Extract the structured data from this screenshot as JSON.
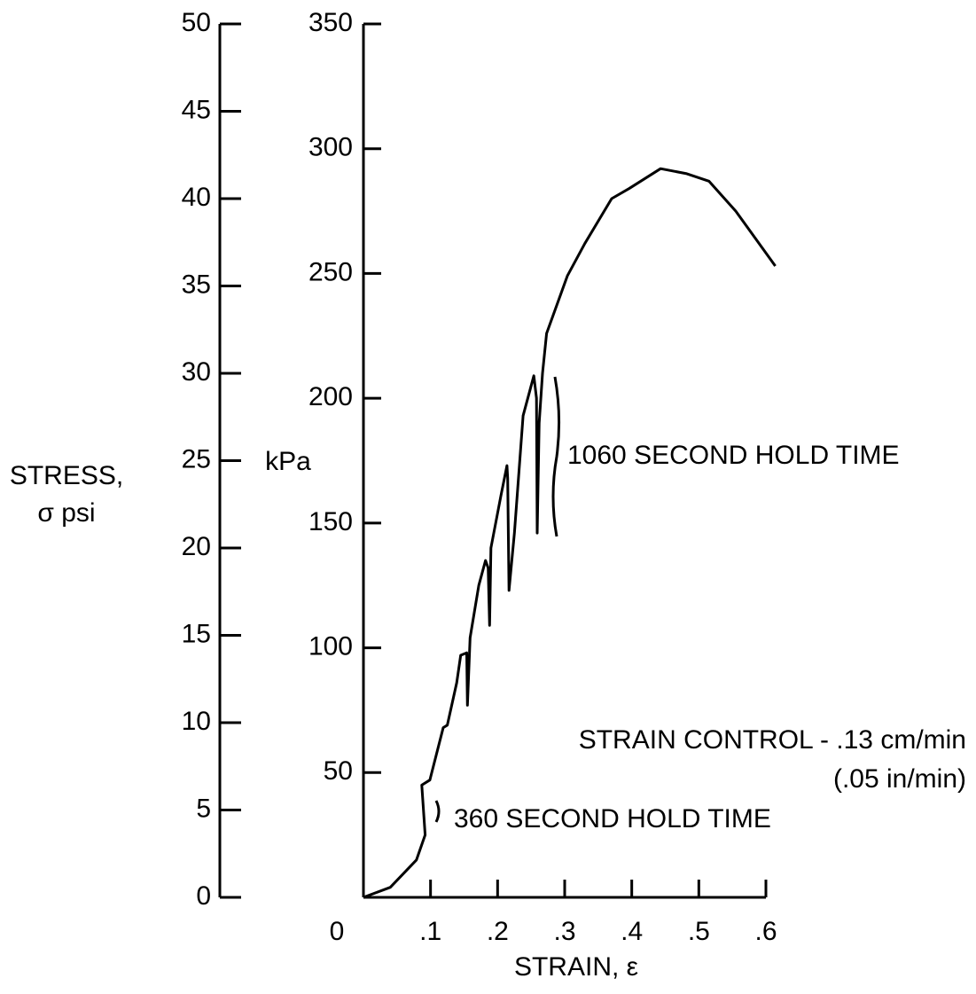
{
  "chart_data": {
    "type": "line",
    "xlabel": "STRAIN, ε",
    "ylabel": "kPa",
    "y2label": [
      "STRESS,",
      "σ psi"
    ],
    "annotations": [
      "1060 SECOND HOLD TIME",
      "STRAIN CONTROL - .13 cm/min",
      "(.05 in/min)",
      "360 SECOND HOLD TIME"
    ],
    "color": "#000000",
    "x": [
      0,
      0.04,
      0.079,
      0.092,
      0.087,
      0.099,
      0.119,
      0.125,
      0.139,
      0.145,
      0.154,
      0.155,
      0.159,
      0.172,
      0.182,
      0.186,
      0.188,
      0.19,
      0.205,
      0.214,
      0.215,
      0.217,
      0.225,
      0.238,
      0.254,
      0.258,
      0.259,
      0.262,
      0.267,
      0.273,
      0.304,
      0.33,
      0.37,
      0.396,
      0.443,
      0.482,
      0.515,
      0.555,
      0.614
    ],
    "values": [
      0,
      4,
      15,
      25,
      45,
      47,
      68,
      69,
      86,
      97,
      98,
      77,
      104,
      125,
      135,
      132,
      109,
      140,
      161,
      173,
      168,
      123,
      146,
      193,
      209,
      200,
      146,
      190,
      210,
      226,
      249,
      262,
      280,
      284,
      292,
      290,
      287,
      275,
      253
    ],
    "xlim": [
      0,
      0.6
    ],
    "xticks": [
      0,
      {
        "value": 0.1,
        "label": ".1"
      },
      {
        "value": 0.2,
        "label": ".2"
      },
      {
        "value": 0.3,
        "label": ".3"
      },
      {
        "value": 0.4,
        "label": ".4"
      },
      {
        "value": 0.5,
        "label": ".5"
      },
      {
        "value": 0.6,
        "label": ".6"
      }
    ],
    "ylim": [
      0,
      350
    ],
    "yticks": [
      50,
      100,
      150,
      200,
      250,
      300,
      350
    ],
    "y2lim": [
      0,
      50
    ],
    "y2ticks": [
      0,
      5,
      10,
      15,
      20,
      25,
      30,
      35,
      40,
      45,
      50
    ]
  }
}
